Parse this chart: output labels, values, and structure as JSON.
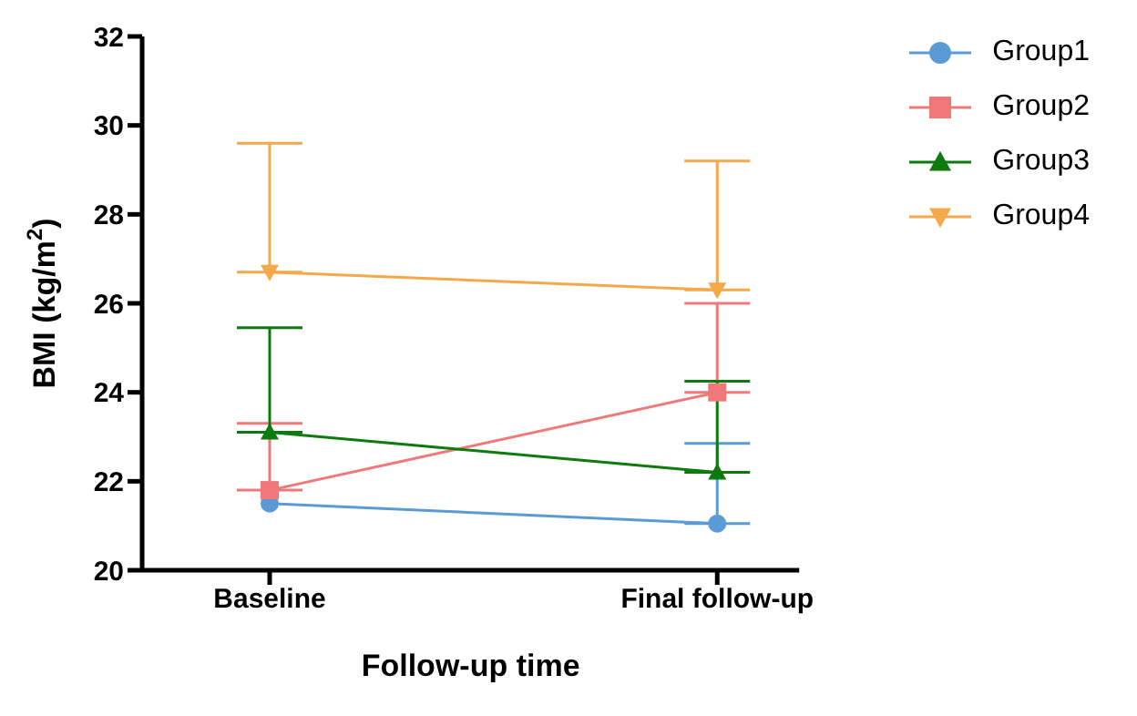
{
  "chart_data": {
    "type": "line",
    "xlabel": "Follow-up time",
    "ylabel": "BMI (kg/m$^{2}$)",
    "categories": [
      "Baseline",
      "Final follow-up"
    ],
    "ylim": [
      20,
      32
    ],
    "yticks": [
      20,
      22,
      24,
      26,
      28,
      30,
      32
    ],
    "grid": false,
    "legend": "right",
    "series": [
      {
        "name": "Group1",
        "color": "#5b9bd5",
        "marker": "circle",
        "values": [
          21.5,
          21.05
        ],
        "errors": [
          null,
          [
            21.05,
            22.85
          ]
        ]
      },
      {
        "name": "Group2",
        "color": "#f07878",
        "marker": "square",
        "values": [
          21.8,
          24.0
        ],
        "errors": [
          [
            21.8,
            23.3
          ],
          [
            24.0,
            26.0
          ]
        ]
      },
      {
        "name": "Group3",
        "color": "#0d7a0d",
        "marker": "triangle",
        "values": [
          23.1,
          22.2
        ],
        "errors": [
          [
            23.1,
            25.45
          ],
          [
            22.2,
            24.25
          ]
        ]
      },
      {
        "name": "Group4",
        "color": "#f5a84a",
        "marker": "triangle-down",
        "values": [
          26.7,
          26.3
        ],
        "errors": [
          [
            26.7,
            29.6
          ],
          [
            26.3,
            29.2
          ]
        ]
      }
    ]
  }
}
